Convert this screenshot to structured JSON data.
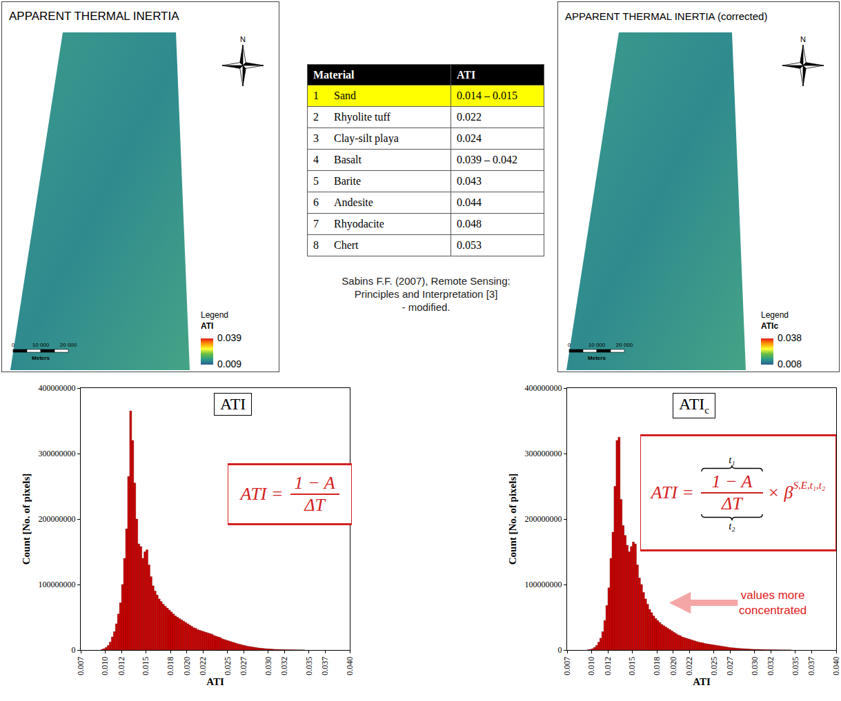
{
  "maps": [
    {
      "title": "APPARENT THERMAL INERTIA",
      "north": "N",
      "legend_title": "Legend",
      "legend_label": "ATI",
      "colorbar": {
        "range": [
          0.009,
          0.039
        ],
        "ticks": [
          0.009,
          0.039
        ]
      },
      "scale": {
        "ticks": [
          0,
          {
            "value": 10000,
            "label": "10 000"
          },
          {
            "value": 20000,
            "label": "20 000"
          }
        ],
        "unit": "Meters"
      }
    },
    {
      "title": "APPARENT THERMAL INERTIA (corrected)",
      "north": "N",
      "legend_title": "Legend",
      "legend_label": "ATIc",
      "colorbar": {
        "range": [
          0.008,
          0.038
        ],
        "ticks": [
          0.008,
          0.038
        ]
      },
      "scale": {
        "ticks": [
          0,
          {
            "value": 10000,
            "label": "10 000"
          },
          {
            "value": 20000,
            "label": "20 000"
          }
        ],
        "unit": "Meters"
      }
    }
  ],
  "table": {
    "header": [
      "Material",
      "ATI"
    ],
    "rows": [
      [
        1,
        "Sand",
        "0.014 – 0.015"
      ],
      [
        2,
        "Rhyolite tuff",
        "0.022"
      ],
      [
        3,
        "Clay-silt playa",
        "0.024"
      ],
      [
        4,
        "Basalt",
        "0.039 – 0.042"
      ],
      [
        5,
        "Barite",
        "0.043"
      ],
      [
        6,
        "Andesite",
        "0.044"
      ],
      [
        7,
        "Rhyodacite",
        "0.048"
      ],
      [
        8,
        "Chert",
        "0.053"
      ]
    ],
    "highlighted_row": 1,
    "caption": [
      "Sabins F.F. (2007), Remote Sensing:",
      "Principles and Interpretation [3]",
      "- modified."
    ]
  },
  "chart_data": [
    {
      "type": "histogram",
      "title": "ATI",
      "title_subscript": "",
      "formula": {
        "lhs": "ATI =",
        "numerator": "1 − A",
        "denominator": "ΔT"
      },
      "x_label": "ATI",
      "y_label": "Count [No. of pixels]",
      "color": "#cc0000",
      "grid": false,
      "bins": [
        0.0095,
        0.00975,
        0.01,
        0.01025,
        0.0105,
        0.01075,
        0.011,
        0.01125,
        0.0115,
        0.01175,
        0.012,
        0.01225,
        0.0125,
        0.01275,
        0.013,
        0.01325,
        0.0135,
        0.01375,
        0.014,
        0.01425,
        0.0145,
        0.01475,
        0.015,
        0.01525,
        0.0155,
        0.01575,
        0.016,
        0.01625,
        0.0165,
        0.01675,
        0.017,
        0.01725,
        0.0175,
        0.01775,
        0.018,
        0.01825,
        0.0185,
        0.01875,
        0.019,
        0.01925,
        0.0195,
        0.01975,
        0.02,
        0.02025,
        0.0205,
        0.02075,
        0.021,
        0.02125,
        0.0215,
        0.02175,
        0.022,
        0.02225,
        0.0225,
        0.02275,
        0.023,
        0.02325,
        0.0235,
        0.02375,
        0.024,
        0.02425,
        0.0245,
        0.02475,
        0.025,
        0.02525,
        0.0255,
        0.02575,
        0.026,
        0.02625,
        0.0265,
        0.02675,
        0.027,
        0.02725,
        0.0275,
        0.02775,
        0.028,
        0.02825,
        0.0285,
        0.02875,
        0.029,
        0.02925,
        0.0295,
        0.02975,
        0.03,
        0.03025,
        0.0305,
        0.03075,
        0.031,
        0.03125,
        0.0315,
        0.03175,
        0.032,
        0.03225,
        0.0325,
        0.03275,
        0.033,
        0.03325,
        0.0335,
        0.03375,
        0.034,
        0.03425,
        0.0345
      ],
      "counts": [
        1000000,
        2000000,
        4000000,
        7000000,
        12000000,
        20000000,
        28000000,
        40000000,
        55000000,
        72000000,
        100000000,
        140000000,
        185000000,
        265000000,
        365000000,
        320000000,
        255000000,
        200000000,
        162000000,
        158000000,
        140000000,
        150000000,
        153000000,
        130000000,
        112000000,
        98000000,
        90000000,
        84000000,
        78000000,
        74000000,
        70000000,
        67000000,
        64000000,
        61000000,
        58000000,
        55000000,
        52000000,
        50000000,
        48000000,
        46000000,
        44000000,
        42000000,
        40000000,
        38000000,
        36000000,
        34000000,
        33000000,
        31000000,
        30000000,
        29000000,
        28000000,
        27000000,
        26000000,
        25000000,
        24000000,
        22000000,
        21000000,
        20000000,
        19000000,
        17000000,
        16000000,
        15000000,
        14000000,
        13000000,
        12000000,
        11000000,
        10000000,
        9000000,
        8500000,
        7500000,
        7000000,
        6000000,
        5500000,
        5000000,
        4500000,
        4000000,
        3500000,
        3000000,
        2700000,
        2400000,
        2100000,
        1800000,
        1600000,
        1400000,
        1200000,
        1000000,
        900000,
        800000,
        700000,
        600000,
        500000,
        400000,
        350000,
        300000,
        250000,
        200000,
        150000,
        100000,
        100000,
        50000
      ],
      "xlim": [
        0.007,
        0.04
      ],
      "xticks": [
        0.007,
        {
          "value": 0.01,
          "label": "0.010"
        },
        0.012,
        0.015,
        0.018,
        {
          "value": 0.02,
          "label": "0.020"
        },
        0.022,
        0.025,
        0.027,
        {
          "value": 0.03,
          "label": "0.030"
        },
        0.032,
        0.035,
        0.037,
        {
          "value": 0.04,
          "label": "0.040"
        }
      ],
      "ylim": [
        0,
        400000000
      ],
      "yticks": [
        0,
        100000000,
        200000000,
        300000000,
        400000000
      ]
    },
    {
      "type": "histogram",
      "title": "ATI",
      "title_subscript": "c",
      "formula": {
        "lhs": "ATI =",
        "numerator": "1 − A",
        "denominator": "ΔT",
        "numerator_brace": "t₁",
        "denominator_brace": "t₂",
        "operator": "×",
        "factor": "β",
        "factor_superscript": "S,E,t₁,t₂"
      },
      "annotation": {
        "lines": [
          "values more",
          "concentrated"
        ],
        "color": "#e02020"
      },
      "x_label": "ATI",
      "y_label": "Count [No. of pixels]",
      "color": "#cc0000",
      "grid": false,
      "bins": [
        0.0095,
        0.00975,
        0.01,
        0.01025,
        0.0105,
        0.01075,
        0.011,
        0.01125,
        0.0115,
        0.01175,
        0.012,
        0.01225,
        0.0125,
        0.01275,
        0.013,
        0.01325,
        0.0135,
        0.01375,
        0.014,
        0.01425,
        0.0145,
        0.01475,
        0.015,
        0.01525,
        0.0155,
        0.01575,
        0.016,
        0.01625,
        0.0165,
        0.01675,
        0.017,
        0.01725,
        0.0175,
        0.01775,
        0.018,
        0.01825,
        0.0185,
        0.01875,
        0.019,
        0.01925,
        0.0195,
        0.01975,
        0.02,
        0.02025,
        0.0205,
        0.02075,
        0.021,
        0.02125,
        0.0215,
        0.02175,
        0.022,
        0.02225,
        0.0225,
        0.02275,
        0.023,
        0.02325,
        0.0235,
        0.02375,
        0.024,
        0.02425,
        0.0245,
        0.02475,
        0.025,
        0.02525,
        0.0255,
        0.02575,
        0.026,
        0.02625,
        0.0265,
        0.02675,
        0.027,
        0.02725,
        0.0275,
        0.02775,
        0.028,
        0.02825,
        0.0285,
        0.02875,
        0.029,
        0.02925,
        0.0295,
        0.02975,
        0.03,
        0.03025,
        0.0305,
        0.03075,
        0.031,
        0.03125,
        0.0315,
        0.03175,
        0.032,
        0.03225,
        0.0325,
        0.03275,
        0.033,
        0.03325,
        0.0335,
        0.03375,
        0.034,
        0.03425,
        0.0345
      ],
      "counts": [
        500000,
        1000000,
        2000000,
        4000000,
        7000000,
        12000000,
        18000000,
        28000000,
        45000000,
        68000000,
        95000000,
        140000000,
        180000000,
        250000000,
        320000000,
        325000000,
        230000000,
        190000000,
        175000000,
        160000000,
        150000000,
        158000000,
        165000000,
        162000000,
        130000000,
        110000000,
        100000000,
        88000000,
        78000000,
        70000000,
        62000000,
        57000000,
        52000000,
        48000000,
        45000000,
        42000000,
        39000000,
        37000000,
        35000000,
        33000000,
        31000000,
        29000000,
        27000000,
        25000000,
        23000000,
        22000000,
        20000000,
        19000000,
        18000000,
        17000000,
        16000000,
        15000000,
        14000000,
        13000000,
        12000000,
        11500000,
        11000000,
        10000000,
        9500000,
        9000000,
        8500000,
        8000000,
        7500000,
        7000000,
        6500000,
        6000000,
        5500000,
        5000000,
        4500000,
        4000000,
        3600000,
        3300000,
        3000000,
        2700000,
        2400000,
        2200000,
        2000000,
        1800000,
        1600000,
        1400000,
        1200000,
        1100000,
        1000000,
        900000,
        800000,
        700000,
        600000,
        500000,
        450000,
        400000,
        350000,
        300000,
        250000,
        200000,
        150000,
        100000,
        100000,
        50000,
        50000,
        20000
      ],
      "xlim": [
        0.007,
        0.04
      ],
      "xticks": [
        0.007,
        {
          "value": 0.01,
          "label": "0.010"
        },
        0.012,
        0.015,
        0.018,
        {
          "value": 0.02,
          "label": "0.020"
        },
        0.022,
        0.025,
        0.027,
        {
          "value": 0.03,
          "label": "0.030"
        },
        0.032,
        0.035,
        0.037,
        {
          "value": 0.04,
          "label": "0.040"
        }
      ],
      "ylim": [
        0,
        400000000
      ],
      "yticks": [
        0,
        100000000,
        200000000,
        300000000,
        400000000
      ]
    }
  ]
}
